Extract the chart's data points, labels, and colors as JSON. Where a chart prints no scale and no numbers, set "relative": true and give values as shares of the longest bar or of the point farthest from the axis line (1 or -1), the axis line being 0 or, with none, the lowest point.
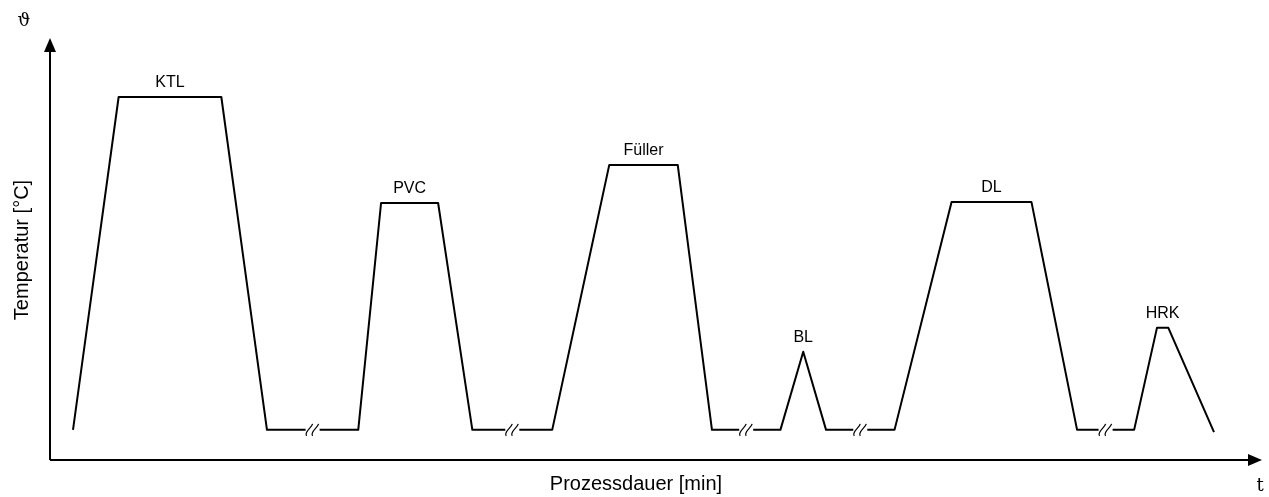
{
  "chart_data": {
    "type": "line",
    "relative": true,
    "xlabel": "Prozessdauer [min]",
    "ylabel": "Temperatur [°C]",
    "categories": [
      null,
      null,
      null,
      null,
      null,
      null,
      null,
      null,
      null,
      null,
      null,
      null,
      null,
      null,
      null,
      null,
      null,
      null,
      null,
      null,
      null,
      null,
      null,
      null,
      null,
      null,
      null,
      null,
      null,
      null,
      null,
      null,
      null,
      null,
      null,
      null,
      null,
      null,
      null,
      null,
      null,
      null,
      null,
      null,
      null,
      null,
      null,
      null,
      null,
      null,
      null,
      null,
      null,
      null,
      null,
      null,
      null,
      null,
      null,
      null,
      null,
      null,
      null,
      null,
      null,
      null,
      null,
      null,
      null,
      null,
      null,
      null,
      null,
      null,
      null,
      null,
      null,
      null,
      null,
      null,
      null,
      null,
      null,
      null,
      null,
      null,
      null,
      null,
      null,
      null,
      null,
      null,
      null,
      null,
      null,
      null,
      null,
      null,
      null,
      null,
      null
    ],
    "marker": "none",
    "line_style": "solid",
    "series": [
      {
        "color": "#000000",
        "values": [
          0.083,
          null,
          null,
          null,
          1,
          null,
          null,
          null,
          null,
          null,
          null,
          null,
          null,
          1,
          null,
          null,
          null,
          0.083,
          null,
          null,
          null,
          null,
          null,
          null,
          null,
          0.083,
          null,
          0.708,
          null,
          null,
          null,
          null,
          0.708,
          null,
          null,
          0.083,
          null,
          null,
          null,
          null,
          null,
          null,
          0.083,
          null,
          null,
          null,
          null,
          0.813,
          null,
          null,
          null,
          null,
          null,
          0.813,
          null,
          null,
          0.083,
          null,
          null,
          null,
          null,
          null,
          0.083,
          null,
          0.298,
          null,
          0.083,
          null,
          null,
          null,
          null,
          null,
          0.083,
          null,
          null,
          null,
          null,
          0.711,
          null,
          null,
          null,
          null,
          null,
          null,
          0.711,
          null,
          null,
          null,
          0.083,
          null,
          null,
          null,
          null,
          0.083,
          null,
          0.364,
          0.364,
          null,
          null,
          null,
          0.077
        ]
      }
    ],
    "annotations": [
      "ϑ",
      "t",
      "KTL",
      "PVC",
      "Füller",
      "BL",
      "DL",
      "HRK"
    ]
  }
}
